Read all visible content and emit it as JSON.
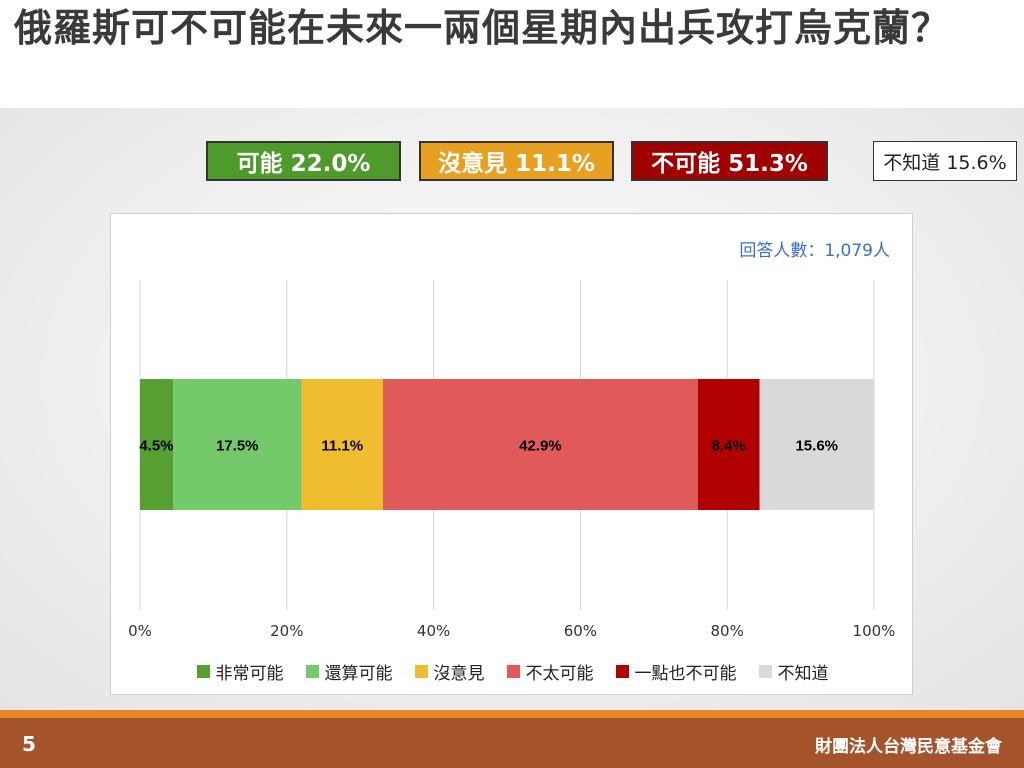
{
  "title": "俄羅斯可不可能在未來一兩個星期內出兵攻打烏克蘭？",
  "summary": [
    {
      "label": "可能 22.0%",
      "bg": "#4e9a2a",
      "fg": "#ffffff"
    },
    {
      "label": "沒意見 11.1%",
      "bg": "#e8a020",
      "fg": "#ffffff"
    },
    {
      "label": "不可能 51.3%",
      "bg": "#a00000",
      "fg": "#ffffff"
    },
    {
      "label": "不知道 15.6%",
      "bg": "#ffffff",
      "fg": "#222222"
    }
  ],
  "respondents": "回答人數：1,079人",
  "chart_data": {
    "type": "bar",
    "orientation": "horizontal",
    "stacked": true,
    "xlim": [
      0,
      100
    ],
    "x_ticks": [
      "0%",
      "20%",
      "40%",
      "60%",
      "80%",
      "100%"
    ],
    "grid": true,
    "legend_position": "bottom",
    "series": [
      {
        "name": "非常可能",
        "value": 4.5,
        "label": "4.5%",
        "color": "#55a030",
        "label_color": "#000000"
      },
      {
        "name": "還算可能",
        "value": 17.5,
        "label": "17.5%",
        "color": "#74c96a",
        "label_color": "#000000"
      },
      {
        "name": "沒意見",
        "value": 11.1,
        "label": "11.1%",
        "color": "#f0bc30",
        "label_color": "#000000"
      },
      {
        "name": "不太可能",
        "value": 42.9,
        "label": "42.9%",
        "color": "#e05a5a",
        "label_color": "#000000"
      },
      {
        "name": "一點也不可能",
        "value": 8.4,
        "label": "8.4%",
        "color": "#b00000",
        "label_color": "#000000"
      },
      {
        "name": "不知道",
        "value": 15.6,
        "label": "15.6%",
        "color": "#d9d9d9",
        "label_color": "#000000"
      }
    ]
  },
  "footer": {
    "page_number": "5",
    "organization": "財團法人台灣民意基金會"
  }
}
